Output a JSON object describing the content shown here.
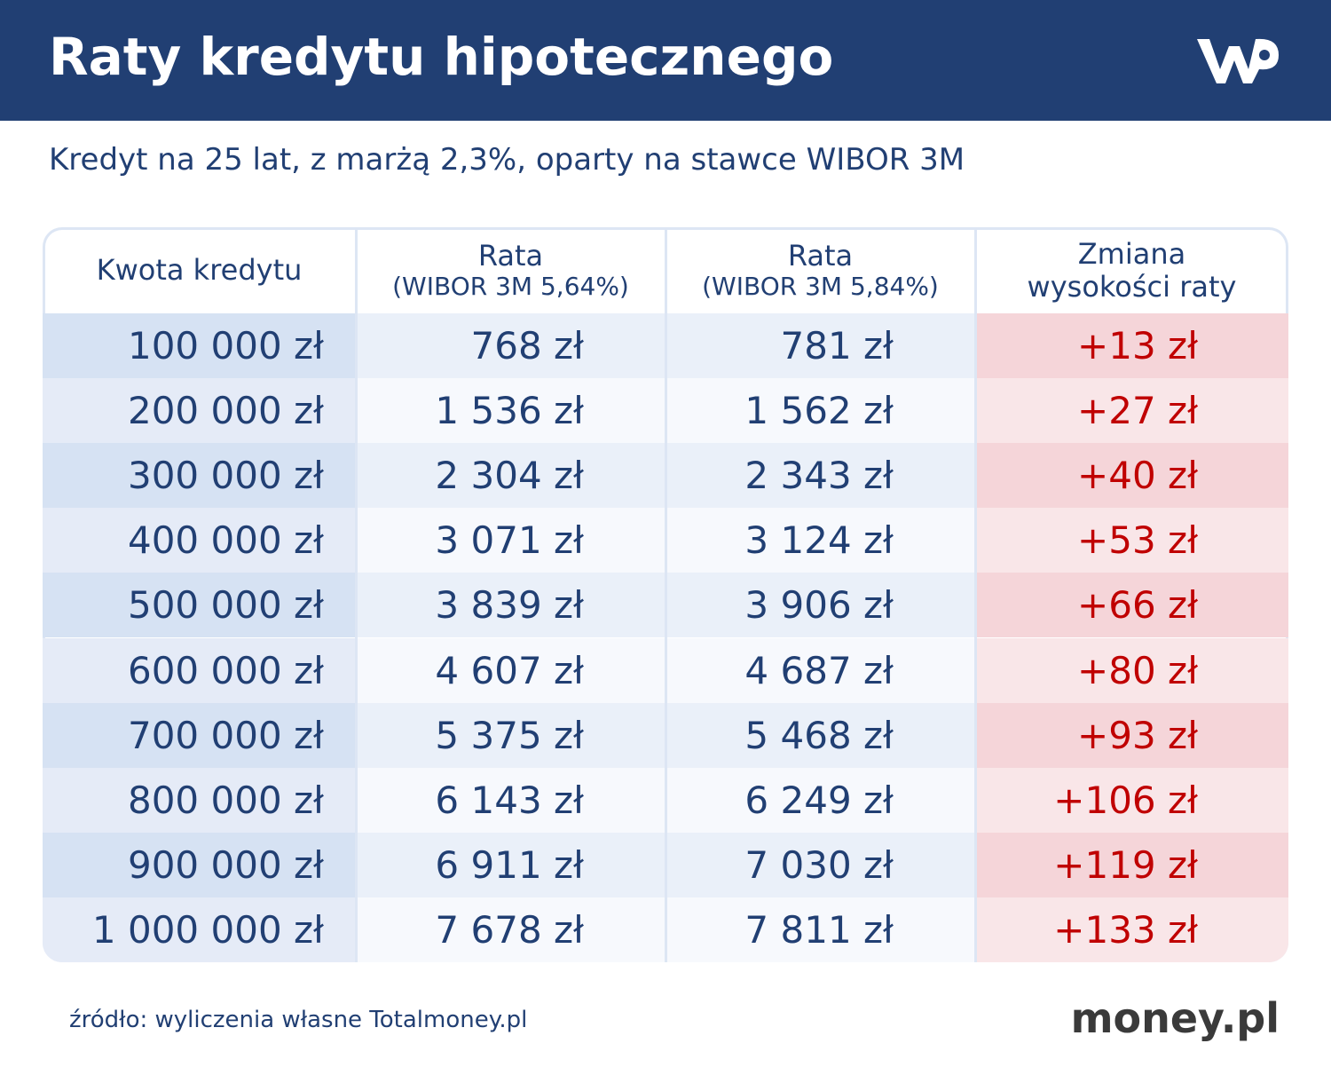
{
  "header": {
    "title": "Raty kredytu hipotecznego"
  },
  "subtitle": "Kredyt na 25 lat, z marżą 2,3%, oparty na stawce WIBOR 3M",
  "table": {
    "headers": [
      [
        "Kwota kredytu"
      ],
      [
        "Rata",
        "(WIBOR 3M 5,64%)"
      ],
      [
        "Rata",
        "(WIBOR 3M 5,84%)"
      ],
      [
        "Zmiana",
        "wysokości raty"
      ]
    ],
    "rows": [
      [
        "100 000 zł",
        "768 zł",
        "781 zł",
        "+13 zł"
      ],
      [
        "200 000 zł",
        "1 536 zł",
        "1 562 zł",
        "+27 zł"
      ],
      [
        "300 000 zł",
        "2 304 zł",
        "2 343 zł",
        "+40 zł"
      ],
      [
        "400 000 zł",
        "3 071 zł",
        "3 124 zł",
        "+53 zł"
      ],
      [
        "500 000 zł",
        "3 839 zł",
        "3 906 zł",
        "+66 zł"
      ],
      [
        "600 000 zł",
        "4 607 zł",
        "4 687 zł",
        "+80 zł"
      ],
      [
        "700 000 zł",
        "5 375 zł",
        "5 468 zł",
        "+93 zł"
      ],
      [
        "800 000 zł",
        "6 143 zł",
        "6 249 zł",
        "+106 zł"
      ],
      [
        "900 000 zł",
        "6 911 zł",
        "7 030 zł",
        "+119 zł"
      ],
      [
        "1 000 000 zł",
        "7 678 zł",
        "7 811 zł",
        "+133 zł"
      ]
    ]
  },
  "footer": {
    "source": "źródło: wyliczenia własne Totalmoney.pl",
    "brand": "money.pl"
  }
}
